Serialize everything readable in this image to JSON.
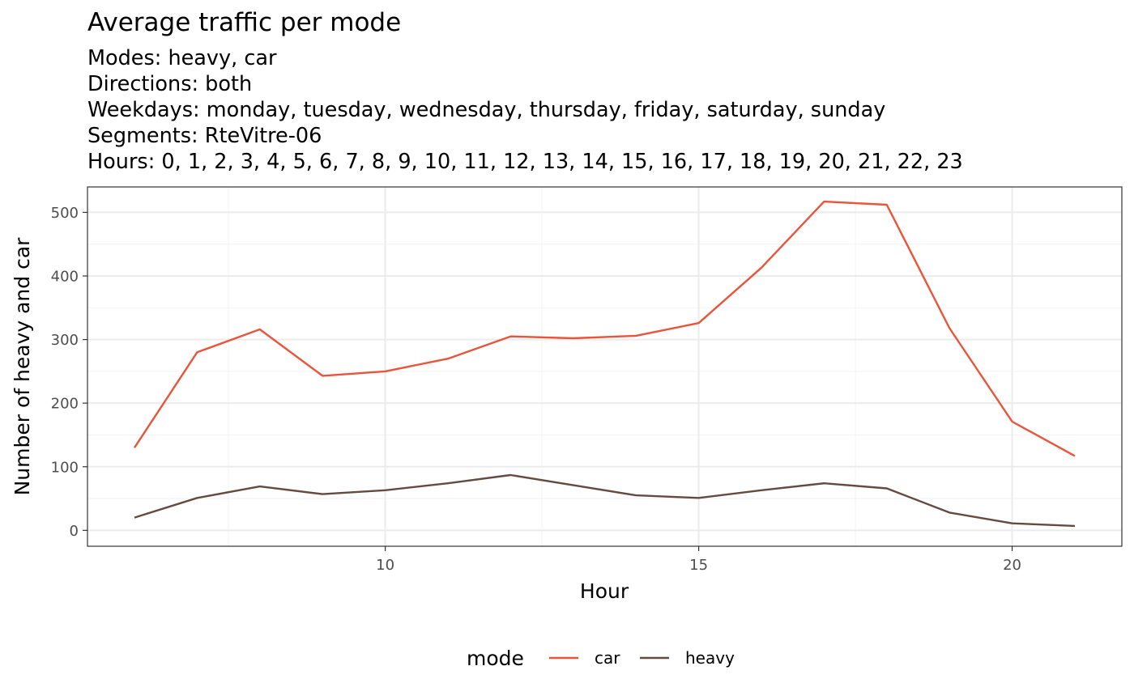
{
  "chart_data": {
    "type": "line",
    "title": "Average traffic per mode",
    "subtitle_lines": [
      "Modes: heavy, car",
      "Directions: both",
      "Weekdays: monday, tuesday, wednesday, thursday, friday, saturday, sunday",
      "Segments: RteVitre-06",
      "Hours: 0, 1, 2, 3, 4, 5, 6, 7, 8, 9, 10, 11, 12, 13, 14, 15, 16, 17, 18, 19, 20, 21, 22, 23"
    ],
    "xlabel": "Hour",
    "ylabel": "Number of heavy and car",
    "x": [
      6,
      7,
      8,
      9,
      10,
      11,
      12,
      13,
      14,
      15,
      16,
      17,
      18,
      19,
      20,
      21
    ],
    "xlim": [
      5.25,
      21.75
    ],
    "ylim": [
      -25,
      540
    ],
    "x_ticks": [
      10,
      15,
      20
    ],
    "y_ticks": [
      0,
      100,
      200,
      300,
      400,
      500
    ],
    "grid": true,
    "legend_title": "mode",
    "legend_position": "bottom",
    "series": [
      {
        "name": "car",
        "color": "#E8553A",
        "values": [
          130,
          280,
          316,
          243,
          250,
          270,
          305,
          302,
          306,
          326,
          413,
          517,
          512,
          318,
          171,
          117
        ]
      },
      {
        "name": "heavy",
        "color": "#654A40",
        "values": [
          20,
          51,
          69,
          57,
          63,
          74,
          87,
          71,
          55,
          51,
          63,
          74,
          66,
          28,
          11,
          7
        ]
      }
    ]
  }
}
